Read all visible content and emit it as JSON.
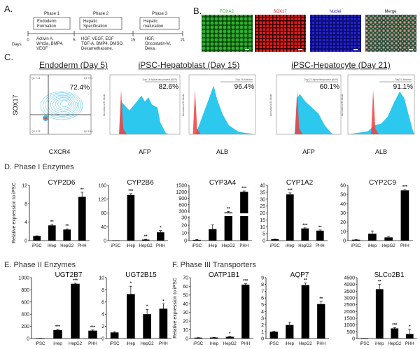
{
  "panel_a": {
    "letter": "A.",
    "days_label": "Days",
    "day_ticks": [
      "0",
      "5",
      "15",
      "21"
    ],
    "phases": [
      {
        "name": "Phase 1",
        "stage": [
          "Endoderm",
          "Formation"
        ],
        "factors": [
          "Activin A,",
          "Wnt3a, BMP4,",
          "VEGF"
        ]
      },
      {
        "name": "Phase 2",
        "stage": [
          "Hepatic",
          "Specification"
        ],
        "factors": [
          "HGF, VEGF, EGF",
          "TGF-A, BMP4, DMSO,",
          "Dexamethasone."
        ]
      },
      {
        "name": "Phase 3",
        "stage": [
          "Hepatic",
          "maturation"
        ],
        "factors": [
          "HGF,",
          "Oncostatin-M,",
          "Dexa."
        ]
      }
    ]
  },
  "panel_b": {
    "letter": "B.",
    "images": [
      {
        "label": "FOXA2",
        "color": "#2fa82f"
      },
      {
        "label": "SOX17",
        "color": "#e02020"
      },
      {
        "label": "Nuclei",
        "color": "#2a2ad8"
      },
      {
        "label": "Merge",
        "color": "#222222"
      }
    ]
  },
  "panel_c": {
    "letter": "C.",
    "headings": [
      "Endoderm (Day 5)",
      "iPSC-Hepatoblast (Day 15)",
      "iPSC-Hepatocyte (Day 21)"
    ],
    "contour": {
      "ylabel": "SOX17",
      "xlabel": "CXCR4",
      "percent": "72.4%",
      "quadrants": [
        "Q1 7.24",
        "Q2 72.4",
        "Q3 9.78",
        "Q4 10.6"
      ]
    },
    "histograms": [
      {
        "gate": "Day 15 Alpha feto protein (AFP)",
        "percent": "82.6%",
        "xlabel": "AFP"
      },
      {
        "gate": "Day 15 Albumin",
        "percent": "96.4%",
        "xlabel": "ALB"
      },
      {
        "gate": "Day 21 Alpha fetoprotein (AFP)",
        "percent": "60.1%",
        "xlabel": "AFP"
      },
      {
        "gate": "Day21-Albumin",
        "percent": "91.1%",
        "xlabel": "ALB"
      }
    ],
    "hist_ylabel": "Normalized To Mode",
    "colors": {
      "sample": "#2cc8ee",
      "control": "#f04040",
      "contour": "#3cbfe8"
    }
  },
  "sections": {
    "d": "D. Phase I Enzymes",
    "e": "E. Phase II Enzymes",
    "f": "F. Phase III Transporters"
  },
  "chart_data": [
    {
      "type": "bar",
      "title": "CYP2D6",
      "ylabel": "Relative expression to iPSC",
      "categories": [
        "iPSC",
        "iHep",
        "HepG2",
        "PHH"
      ],
      "values": [
        1,
        3.3,
        2.4,
        9.5
      ],
      "errors": [
        0.05,
        0.2,
        0.15,
        1.0
      ],
      "significance": [
        "",
        "**",
        "**",
        "**"
      ],
      "ylim": [
        0,
        12
      ],
      "yticks": [
        0,
        4,
        8,
        12
      ]
    },
    {
      "type": "bar",
      "title": "CYP2B6",
      "ylabel": "",
      "categories": [
        "iPSC",
        "iHep",
        "HepG2",
        "PHH"
      ],
      "values": [
        0.5,
        132,
        3,
        24
      ],
      "errors": [
        0,
        4,
        1,
        5
      ],
      "significance": [
        "",
        "***",
        "**",
        "*"
      ],
      "ylim": [
        0,
        160
      ],
      "yticks": [
        0,
        40,
        80,
        120,
        160
      ]
    },
    {
      "type": "bar",
      "title": "CYP3A4",
      "ylabel": "",
      "categories": [
        "iPSC",
        "iHep",
        "HepG2",
        "PHH"
      ],
      "values": [
        1,
        15,
        250,
        1200
      ],
      "errors": [
        0.5,
        5.5,
        40,
        40
      ],
      "significance": [
        "",
        "",
        "**",
        "***"
      ],
      "ylim": [
        0,
        1500
      ],
      "broken_axis": [
        30,
        300
      ],
      "yticks": [
        0,
        10,
        20,
        30,
        300,
        600,
        900,
        1200,
        1500
      ]
    },
    {
      "type": "bar",
      "title": "CYP1A2",
      "ylabel": "",
      "categories": [
        "iPSC",
        "iHep",
        "HepG2",
        "PHH"
      ],
      "values": [
        1,
        33.5,
        8.8,
        7.2
      ],
      "errors": [
        0.1,
        1,
        0.4,
        0.5
      ],
      "significance": [
        "",
        "***",
        "***",
        "**"
      ],
      "ylim": [
        0,
        40
      ],
      "yticks": [
        0,
        5,
        10,
        15,
        20,
        25,
        30,
        35,
        40
      ]
    },
    {
      "type": "bar",
      "title": "CYP2C9",
      "ylabel": "",
      "categories": [
        "iPSC",
        "iHep",
        "HepG2",
        "PHH"
      ],
      "values": [
        1,
        7.5,
        3.5,
        54.5
      ],
      "errors": [
        0.1,
        3,
        1,
        1
      ],
      "significance": [
        "",
        "",
        "",
        "***"
      ],
      "ylim": [
        0,
        60
      ],
      "yticks": [
        0,
        10,
        20,
        30,
        40,
        50,
        60
      ]
    },
    {
      "type": "bar",
      "title": "UGT2B7",
      "ylabel": "",
      "categories": [
        "iPSC",
        "iHep",
        "HepG2",
        "PHH"
      ],
      "values": [
        2,
        140,
        900,
        130
      ],
      "errors": [
        1,
        10,
        10,
        10
      ],
      "significance": [
        "",
        "***",
        "***",
        "***"
      ],
      "ylim": [
        0,
        1000
      ],
      "yticks": [
        0,
        200,
        400,
        600,
        800,
        1000
      ]
    },
    {
      "type": "bar",
      "title": "UGT2B15",
      "ylabel": "",
      "categories": [
        "iPSC",
        "iHep",
        "HepG2",
        "PHH"
      ],
      "values": [
        1,
        7.3,
        4,
        4.9
      ],
      "errors": [
        0.1,
        1.3,
        0.8,
        0.8
      ],
      "significance": [
        "",
        "*",
        "*",
        "*"
      ],
      "ylim": [
        0,
        10
      ],
      "yticks": [
        0,
        2,
        4,
        6,
        8,
        10
      ]
    },
    {
      "type": "bar",
      "title": "OATP1B1",
      "ylabel": "Relative expression to iPSC",
      "categories": [
        "iPSC",
        "iHep",
        "HepG2",
        "PHH"
      ],
      "values": [
        1,
        1.2,
        2,
        62
      ],
      "errors": [
        0.1,
        0.1,
        0.3,
        1
      ],
      "significance": [
        "",
        "",
        "*",
        "***"
      ],
      "ylim": [
        0,
        70
      ],
      "yticks": [
        0,
        10,
        20,
        30,
        40,
        50,
        60,
        70
      ]
    },
    {
      "type": "bar",
      "title": "AQP7",
      "ylabel": "",
      "categories": [
        "iPSC",
        "iHep",
        "HepG2",
        "PHH"
      ],
      "values": [
        1,
        2,
        7.9,
        5.1
      ],
      "errors": [
        0.1,
        0.4,
        0.3,
        0.4
      ],
      "significance": [
        "",
        "",
        "**",
        "**"
      ],
      "ylim": [
        0,
        9
      ],
      "yticks": [
        0,
        1,
        2,
        3,
        4,
        5,
        6,
        7,
        8,
        9
      ]
    },
    {
      "type": "bar",
      "title": "SLCo2B1",
      "ylabel": "",
      "categories": [
        "iPSC",
        "iHep",
        "HepG2",
        "PHH"
      ],
      "values": [
        0,
        3650,
        750,
        330
      ],
      "errors": [
        0,
        350,
        50,
        350
      ],
      "significance": [
        "",
        "**",
        "***",
        "*"
      ],
      "ylim": [
        0,
        4500
      ],
      "yticks": [
        0,
        500,
        1000,
        1500,
        2000,
        2500,
        3000,
        3500,
        4000,
        4500
      ]
    }
  ]
}
